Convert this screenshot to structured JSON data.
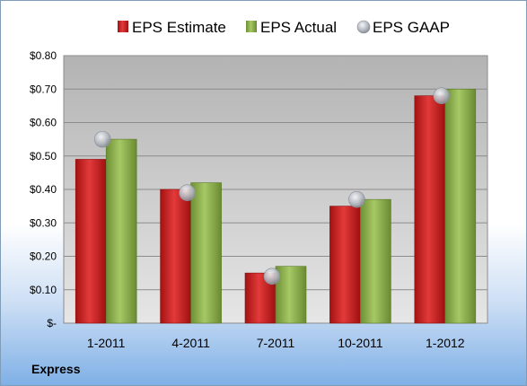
{
  "company_label": "Express",
  "colors": {
    "estimate": "#cc1f1f",
    "actual": "#8cb04a",
    "gaap": "#b8bcc4",
    "plot_bg_top": "#b3b3b3",
    "plot_bg_bottom": "#e6e6e6"
  },
  "chart_data": {
    "type": "bar",
    "categories": [
      "1-2011",
      "4-2011",
      "7-2011",
      "10-2011",
      "1-2012"
    ],
    "series": [
      {
        "name": "EPS Estimate",
        "kind": "bar",
        "values": [
          0.49,
          0.4,
          0.15,
          0.35,
          0.68
        ]
      },
      {
        "name": "EPS Actual",
        "kind": "bar",
        "values": [
          0.55,
          0.42,
          0.17,
          0.37,
          0.7
        ]
      },
      {
        "name": "EPS GAAP",
        "kind": "marker",
        "values": [
          0.55,
          0.39,
          0.14,
          0.37,
          0.68
        ]
      }
    ],
    "ylim": [
      0,
      0.8
    ],
    "yticks": [
      0,
      0.1,
      0.2,
      0.3,
      0.4,
      0.5,
      0.6,
      0.7,
      0.8
    ],
    "ytick_labels": [
      "$-",
      "$0.10",
      "$0.20",
      "$0.30",
      "$0.40",
      "$0.50",
      "$0.60",
      "$0.70",
      "$0.80"
    ],
    "grid": true,
    "legend_position": "top",
    "title": "",
    "xlabel": "",
    "ylabel": ""
  }
}
